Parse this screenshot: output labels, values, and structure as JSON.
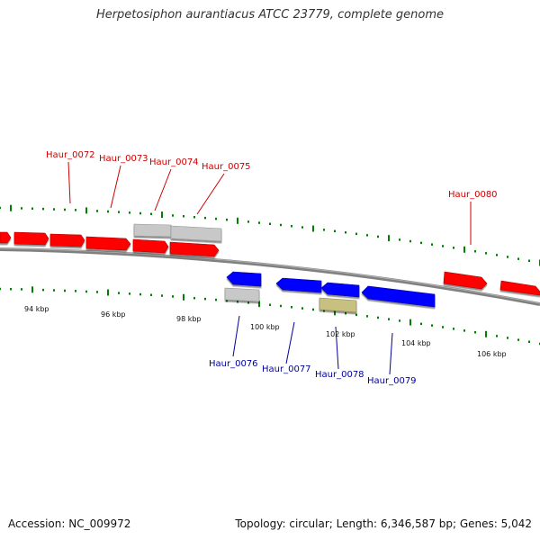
{
  "title": "Herpetosiphon aurantiacus ATCC 23779, complete genome",
  "footer": {
    "accession": "Accession: NC_009972",
    "summary": "Topology: circular; Length: 6,346,587 bp; Genes: 5,042"
  },
  "colors": {
    "forward_gene": "#ff0000",
    "reverse_gene": "#0000ff",
    "forward_label": "#cc0000",
    "reverse_label": "#000099",
    "pseudo_gene": "#c8c8c8",
    "other_gene": "#c8c080",
    "backbone": "#808080",
    "tick": "#008000"
  },
  "scale_labels": [
    {
      "kbp": 94,
      "text": "94 kbp"
    },
    {
      "kbp": 96,
      "text": "96 kbp"
    },
    {
      "kbp": 98,
      "text": "98 kbp"
    },
    {
      "kbp": 100,
      "text": "100 kbp"
    },
    {
      "kbp": 102,
      "text": "102 kbp"
    },
    {
      "kbp": 104,
      "text": "104 kbp"
    },
    {
      "kbp": 106,
      "text": "106 kbp"
    }
  ],
  "genes_forward": [
    {
      "name": "Haur_0072"
    },
    {
      "name": "Haur_0073"
    },
    {
      "name": "Haur_0074"
    },
    {
      "name": "Haur_0075"
    },
    {
      "name": "Haur_0080"
    }
  ],
  "genes_reverse": [
    {
      "name": "Haur_0076"
    },
    {
      "name": "Haur_0077"
    },
    {
      "name": "Haur_0078"
    },
    {
      "name": "Haur_0079"
    }
  ]
}
